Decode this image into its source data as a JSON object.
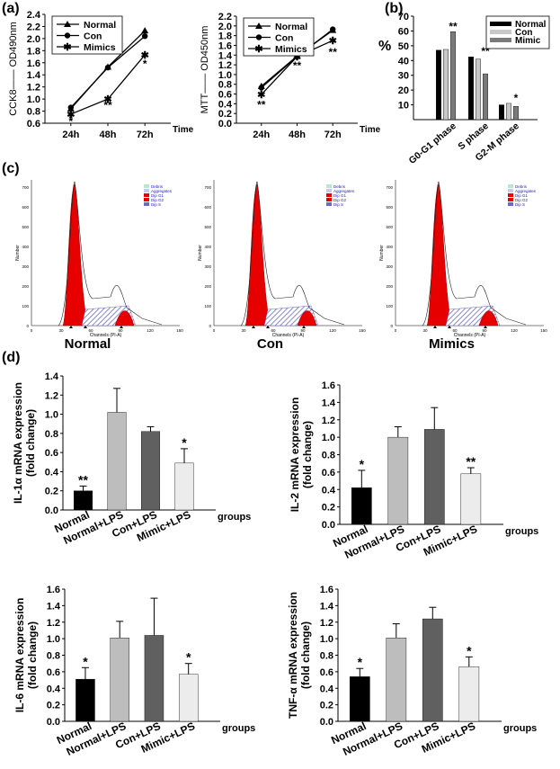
{
  "panel_labels": {
    "a": "(a)",
    "b": "(b)",
    "c": "(c)",
    "d": "(d)"
  },
  "chart_data": [
    {
      "id": "cck8",
      "type": "line",
      "ylabel": "CCK8—— OD490nm",
      "xlabel": "Time",
      "categories": [
        "24h",
        "48h",
        "72h"
      ],
      "ylim": [
        0.6,
        2.4
      ],
      "yticks": [
        "0.6",
        "0.8",
        "1.0",
        "1.2",
        "1.4",
        "1.6",
        "1.8",
        "2.0",
        "2.2",
        "2.4"
      ],
      "series": [
        {
          "name": "Normal",
          "marker": "triangle",
          "values": [
            0.84,
            1.53,
            2.13
          ]
        },
        {
          "name": "Con",
          "marker": "circle",
          "values": [
            0.86,
            1.52,
            2.04
          ]
        },
        {
          "name": "Mimics",
          "marker": "star",
          "values": [
            0.75,
            1.0,
            1.73
          ]
        }
      ],
      "annotations": [
        {
          "x": 0,
          "y": 0.68,
          "text": "*"
        },
        {
          "x": 0,
          "y": 0.63,
          "text": "*"
        },
        {
          "x": 1,
          "y": 0.9,
          "text": "**"
        },
        {
          "x": 2,
          "y": 1.58,
          "text": "*"
        }
      ]
    },
    {
      "id": "mtt",
      "type": "line",
      "ylabel": "MTT—— OD450nm",
      "xlabel": "Time",
      "categories": [
        "24h",
        "48h",
        "72h"
      ],
      "ylim": [
        0.0,
        2.2
      ],
      "yticks": [
        "0.0",
        "0.2",
        "0.4",
        "0.6",
        "0.8",
        "1.0",
        "1.2",
        "1.4",
        "1.6",
        "1.8",
        "2.0",
        "2.2"
      ],
      "series": [
        {
          "name": "Normal",
          "marker": "triangle",
          "values": [
            0.76,
            1.38,
            1.91
          ]
        },
        {
          "name": "Con",
          "marker": "circle",
          "values": [
            0.73,
            1.37,
            1.93
          ]
        },
        {
          "name": "Mimics",
          "marker": "star",
          "values": [
            0.59,
            1.37,
            1.7
          ]
        }
      ],
      "annotations": [
        {
          "x": 0,
          "y": 0.38,
          "text": "**"
        },
        {
          "x": 1,
          "y": 1.18,
          "text": "**"
        },
        {
          "x": 2,
          "y": 1.46,
          "text": "**"
        }
      ]
    },
    {
      "id": "cellcycle",
      "type": "bar",
      "ylabel": "%",
      "ylim": [
        0,
        70
      ],
      "yticks": [
        "10",
        "20",
        "30",
        "40",
        "50",
        "60",
        "70"
      ],
      "categories": [
        "G0-G1 phase",
        "S phase",
        "G2-M phase"
      ],
      "series": [
        {
          "name": "Normal",
          "color": "#000000",
          "values": [
            47,
            42.5,
            10
          ]
        },
        {
          "name": "Con",
          "color": "#c8c8c8",
          "values": [
            47.5,
            41,
            11
          ]
        },
        {
          "name": "Mimic",
          "color": "#7a7a7a",
          "values": [
            59.5,
            31,
            9
          ]
        }
      ],
      "annotations": [
        {
          "x": 0,
          "text": "**"
        },
        {
          "x": 1,
          "text": "**"
        },
        {
          "x": 2,
          "text": "*"
        }
      ]
    },
    {
      "id": "il1a",
      "type": "bar",
      "ylabel": "IL-1α  mRNA expression",
      "ylabel2": "(fold change)",
      "xlabel": "groups",
      "ylim": [
        0,
        1.4
      ],
      "yticks": [
        "0.0",
        "0.2",
        "0.4",
        "0.6",
        "0.8",
        "1.0",
        "1.2",
        "1.4"
      ],
      "categories": [
        "Normal",
        "Normal+LPS",
        "Con+LPS",
        "Mimic+LPS"
      ],
      "values": [
        0.2,
        1.02,
        0.82,
        0.49
      ],
      "errors": [
        0.05,
        0.25,
        0.05,
        0.15
      ],
      "colors": [
        "#000000",
        "#bdbdbd",
        "#606060",
        "#ececec"
      ],
      "annotations": [
        {
          "x": 0,
          "text": "**"
        },
        {
          "x": 3,
          "text": "*"
        }
      ]
    },
    {
      "id": "il2",
      "type": "bar",
      "ylabel": "IL-2 mRNA expression",
      "ylabel2": "(fold change)",
      "xlabel": "groups",
      "ylim": [
        0,
        1.6
      ],
      "yticks": [
        "0.0",
        "0.2",
        "0.4",
        "0.6",
        "0.8",
        "1.0",
        "1.2",
        "1.4",
        "1.6"
      ],
      "categories": [
        "Normal",
        "Normal+LPS",
        "Con+LPS",
        "Mimic+LPS"
      ],
      "values": [
        0.42,
        1.0,
        1.09,
        0.58
      ],
      "errors": [
        0.2,
        0.12,
        0.25,
        0.07
      ],
      "colors": [
        "#000000",
        "#bdbdbd",
        "#606060",
        "#ececec"
      ],
      "annotations": [
        {
          "x": 0,
          "text": "*"
        },
        {
          "x": 3,
          "text": "**"
        }
      ]
    },
    {
      "id": "il6",
      "type": "bar",
      "ylabel": "IL-6 mRNA expression",
      "ylabel2": "(fold change)",
      "xlabel": "groups",
      "ylim": [
        0,
        1.6
      ],
      "yticks": [
        "0.0",
        "0.2",
        "0.4",
        "0.6",
        "0.8",
        "1.0",
        "1.2",
        "1.4",
        "1.6"
      ],
      "categories": [
        "Normal",
        "Normal+LPS",
        "Con+LPS",
        "Mimic+LPS"
      ],
      "values": [
        0.51,
        1.01,
        1.04,
        0.57
      ],
      "errors": [
        0.14,
        0.2,
        0.45,
        0.13
      ],
      "colors": [
        "#000000",
        "#bdbdbd",
        "#606060",
        "#ececec"
      ],
      "annotations": [
        {
          "x": 0,
          "text": "*"
        },
        {
          "x": 3,
          "text": "*"
        }
      ]
    },
    {
      "id": "tnfa",
      "type": "bar",
      "ylabel": "TNF-α mRNA expression",
      "ylabel2": "(fold change)",
      "xlabel": "groups",
      "ylim": [
        0,
        1.6
      ],
      "yticks": [
        "0.0",
        "0.2",
        "0.4",
        "0.6",
        "0.8",
        "1.0",
        "1.2",
        "1.4",
        "1.6"
      ],
      "categories": [
        "Normal",
        "Normal+LPS",
        "Con+LPS",
        "Mimic+LPS"
      ],
      "values": [
        0.54,
        1.01,
        1.24,
        0.66
      ],
      "errors": [
        0.1,
        0.17,
        0.14,
        0.12
      ],
      "colors": [
        "#000000",
        "#bdbdbd",
        "#606060",
        "#ececec"
      ],
      "annotations": [
        {
          "x": 0,
          "text": "*"
        },
        {
          "x": 3,
          "text": "*"
        }
      ]
    }
  ],
  "flow": {
    "titles": [
      "Normal",
      "Con",
      "Mimics"
    ],
    "legend": [
      "Debris",
      "Aggregates",
      "Dip G1",
      "Dip G2",
      "Dip S"
    ],
    "legend_colors": [
      "#b9e6d2",
      "#c8c8f0",
      "#e60000",
      "#e60000",
      "#6a6aca"
    ],
    "xlabel": "Channels (PI-A)",
    "ylabel": "Number",
    "xticks": [
      "0",
      "30",
      "60",
      "90",
      "120",
      "150"
    ],
    "yticks": [
      "0",
      "100",
      "200",
      "300",
      "400",
      "500",
      "600",
      "700"
    ]
  }
}
